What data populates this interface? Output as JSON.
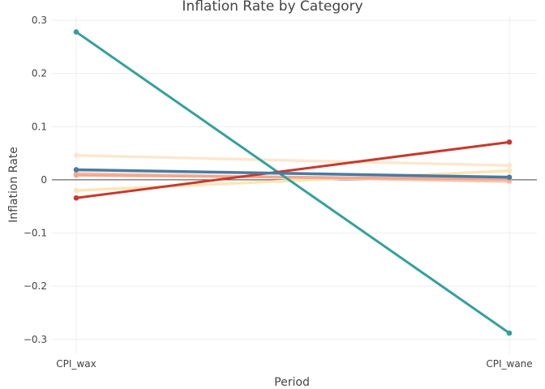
{
  "chart_data": {
    "type": "line",
    "title": "Inflation Rate by Category",
    "xlabel": "Period",
    "ylabel": "Inflation Rate",
    "categories": [
      "CPI_wax",
      "CPI_wane"
    ],
    "ylim": [
      -0.32,
      0.3
    ],
    "yticks": [
      -0.3,
      -0.2,
      -0.1,
      0,
      0.1,
      0.2,
      0.3
    ],
    "ytick_labels": [
      "−0.3",
      "−0.2",
      "−0.1",
      "0",
      "0.1",
      "0.2",
      "0.3"
    ],
    "grid": true,
    "legend": "none",
    "series": [
      {
        "values": [
          0.046,
          0.027
        ],
        "color": "#fde7cf",
        "width": 3.5
      },
      {
        "values": [
          -0.02,
          0.017
        ],
        "color": "#fce6b8",
        "width": 3.5
      },
      {
        "values": [
          0.012,
          -0.003
        ],
        "color": "#f7c7b0",
        "width": 3.5
      },
      {
        "values": [
          0.009,
          0.001
        ],
        "color": "#f2a88f",
        "width": 3.5
      },
      {
        "values": [
          0.278,
          -0.288
        ],
        "color": "#35a09a",
        "width": 3
      },
      {
        "values": [
          -0.034,
          0.071
        ],
        "color": "#c8392d",
        "width": 3
      },
      {
        "values": [
          0.019,
          0.005
        ],
        "color": "#4a7aa1",
        "width": 3.5
      }
    ]
  }
}
